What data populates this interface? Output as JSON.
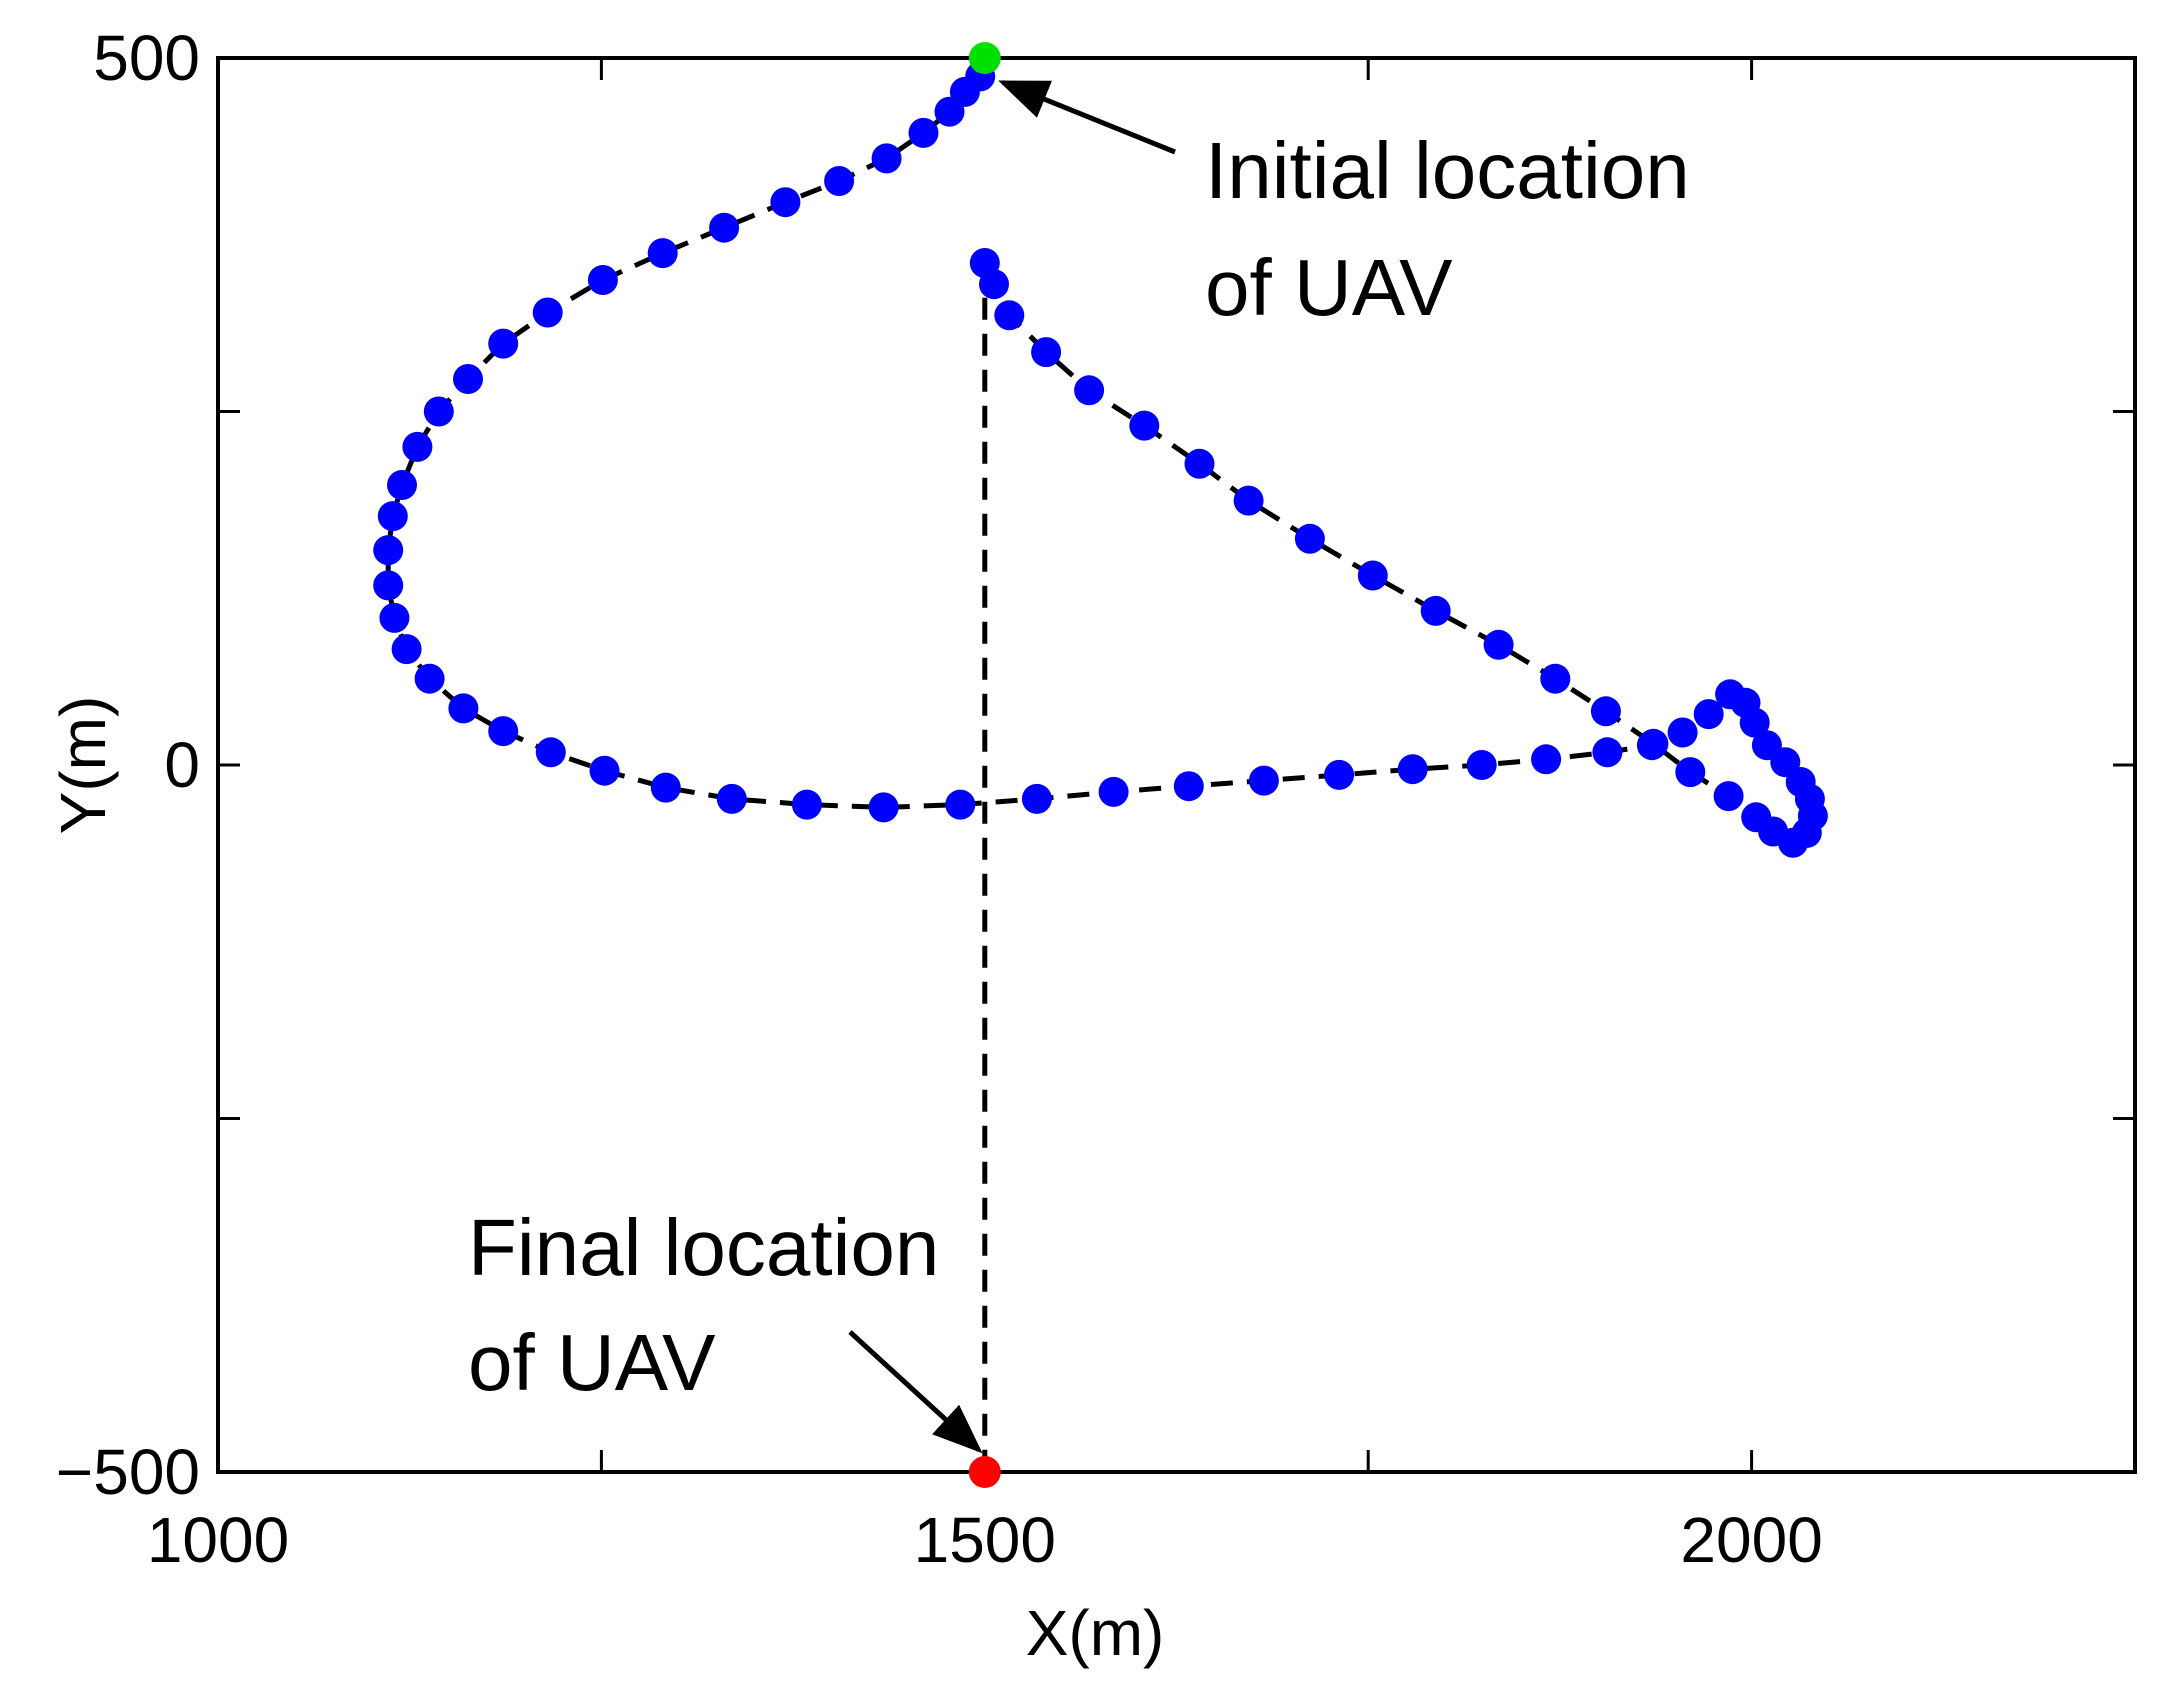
{
  "chart_data": {
    "type": "scatter",
    "xlabel": "X(m)",
    "ylabel": "Y(m)",
    "xlim": [
      1000,
      2250
    ],
    "ylim": [
      -500,
      500
    ],
    "x_ticks": [
      1000,
      1250,
      1500,
      1750,
      2000,
      2250
    ],
    "y_ticks": [
      -500,
      -250,
      0,
      250,
      500
    ],
    "x_tick_labels": [
      "1000",
      "",
      "1500",
      "",
      "2000",
      ""
    ],
    "y_tick_labels": [
      "−500",
      "",
      "0",
      "",
      "500"
    ],
    "grid": false,
    "colors": {
      "points": "#0000ff",
      "path": "#000000",
      "start": "#00e000",
      "end": "#ff0000"
    },
    "series": [
      {
        "x": [
          1497,
          1487,
          1477,
          1460,
          1436,
          1405,
          1370,
          1330,
          1290,
          1251,
          1215,
          1186,
          1163,
          1144,
          1130,
          1120,
          1114,
          1111,
          1111,
          1115,
          1123,
          1138,
          1160,
          1186,
          1217,
          1252,
          1292,
          1335,
          1384,
          1434,
          1484,
          1534,
          1584,
          1633,
          1682,
          1731,
          1779,
          1824,
          1866,
          1906,
          1935,
          1955,
          1972,
          1986,
          1996,
          2002,
          2010,
          2022,
          2032,
          2038,
          2040,
          2036,
          2027,
          2014,
          2003,
          1985,
          1960,
          1936,
          1905,
          1872,
          1835,
          1794,
          1753,
          1712,
          1672,
          1640,
          1604,
          1568,
          1540,
          1516,
          1506,
          1500
        ],
        "y": [
          487,
          476,
          462,
          447,
          429,
          413,
          398,
          380,
          362,
          343,
          320,
          298,
          273,
          250,
          225,
          198,
          176,
          152,
          127,
          104,
          82,
          61,
          40,
          24,
          9,
          -4,
          -16,
          -24,
          -28,
          -30,
          -28,
          -24,
          -19,
          -15,
          -11,
          -7,
          -3,
          0,
          4,
          9,
          14,
          23,
          36,
          50,
          44,
          30,
          14,
          2,
          -12,
          -24,
          -36,
          -48,
          -55,
          -47,
          -37,
          -22,
          -5,
          15,
          38,
          61,
          85,
          109,
          134,
          160,
          187,
          213,
          240,
          265,
          292,
          318,
          340,
          355
        ]
      }
    ],
    "start_point": {
      "x": 1500,
      "y": 500
    },
    "end_point": {
      "x": 1500,
      "y": -500
    },
    "annotations": [
      {
        "text_lines": [
          "Initial location",
          "of UAV"
        ],
        "target": {
          "x": 1500,
          "y": 487
        }
      },
      {
        "text_lines": [
          "Final location",
          "of UAV"
        ],
        "target": {
          "x": 1500,
          "y": -490
        }
      }
    ]
  }
}
